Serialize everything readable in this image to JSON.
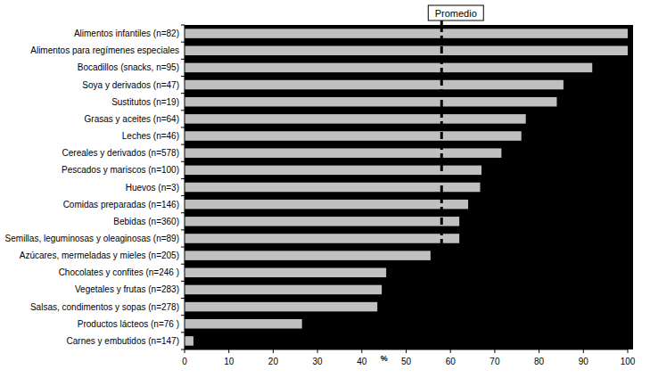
{
  "chart_data": {
    "type": "bar",
    "orientation": "horizontal",
    "categories": [
      "Alimentos infantiles (n=82)",
      "Alimentos para regímenes especiales",
      "Bocadillos (snacks, n=95)",
      "Soya y derivados (n=47)",
      "Sustitutos (n=19)",
      "Grasas y aceites (n=64)",
      "Leches (n=46)",
      "Cereales y derivados (n=578)",
      "Pescados y mariscos (n=100)",
      "Huevos (n=3)",
      "Comidas preparadas (n=146)",
      "Bebidas (n=360)",
      "Semillas, leguminosas y oleaginosas (n=89)",
      "Azúcares, mermeladas y mieles (n=205)",
      "Chocolates y confites (n=246 )",
      "Vegetales y frutas (n=283)",
      "Salsas, condimentos y sopas (n=278)",
      "Productos lácteos (n=76 )",
      "Carnes y embutidos (n=147)"
    ],
    "values": [
      100,
      100,
      92,
      85.5,
      84,
      77,
      76,
      71.5,
      67,
      66.7,
      64,
      62,
      62,
      55.5,
      45.5,
      44.5,
      43.5,
      26.5,
      2
    ],
    "color": "#c0c0c0",
    "xlabel": "%",
    "xlim": [
      0,
      100
    ],
    "xticks": [
      0,
      10,
      20,
      30,
      40,
      50,
      60,
      70,
      80,
      90,
      100
    ],
    "annotations": [
      {
        "text": "Promedio",
        "value": 58
      }
    ],
    "grid": false
  }
}
